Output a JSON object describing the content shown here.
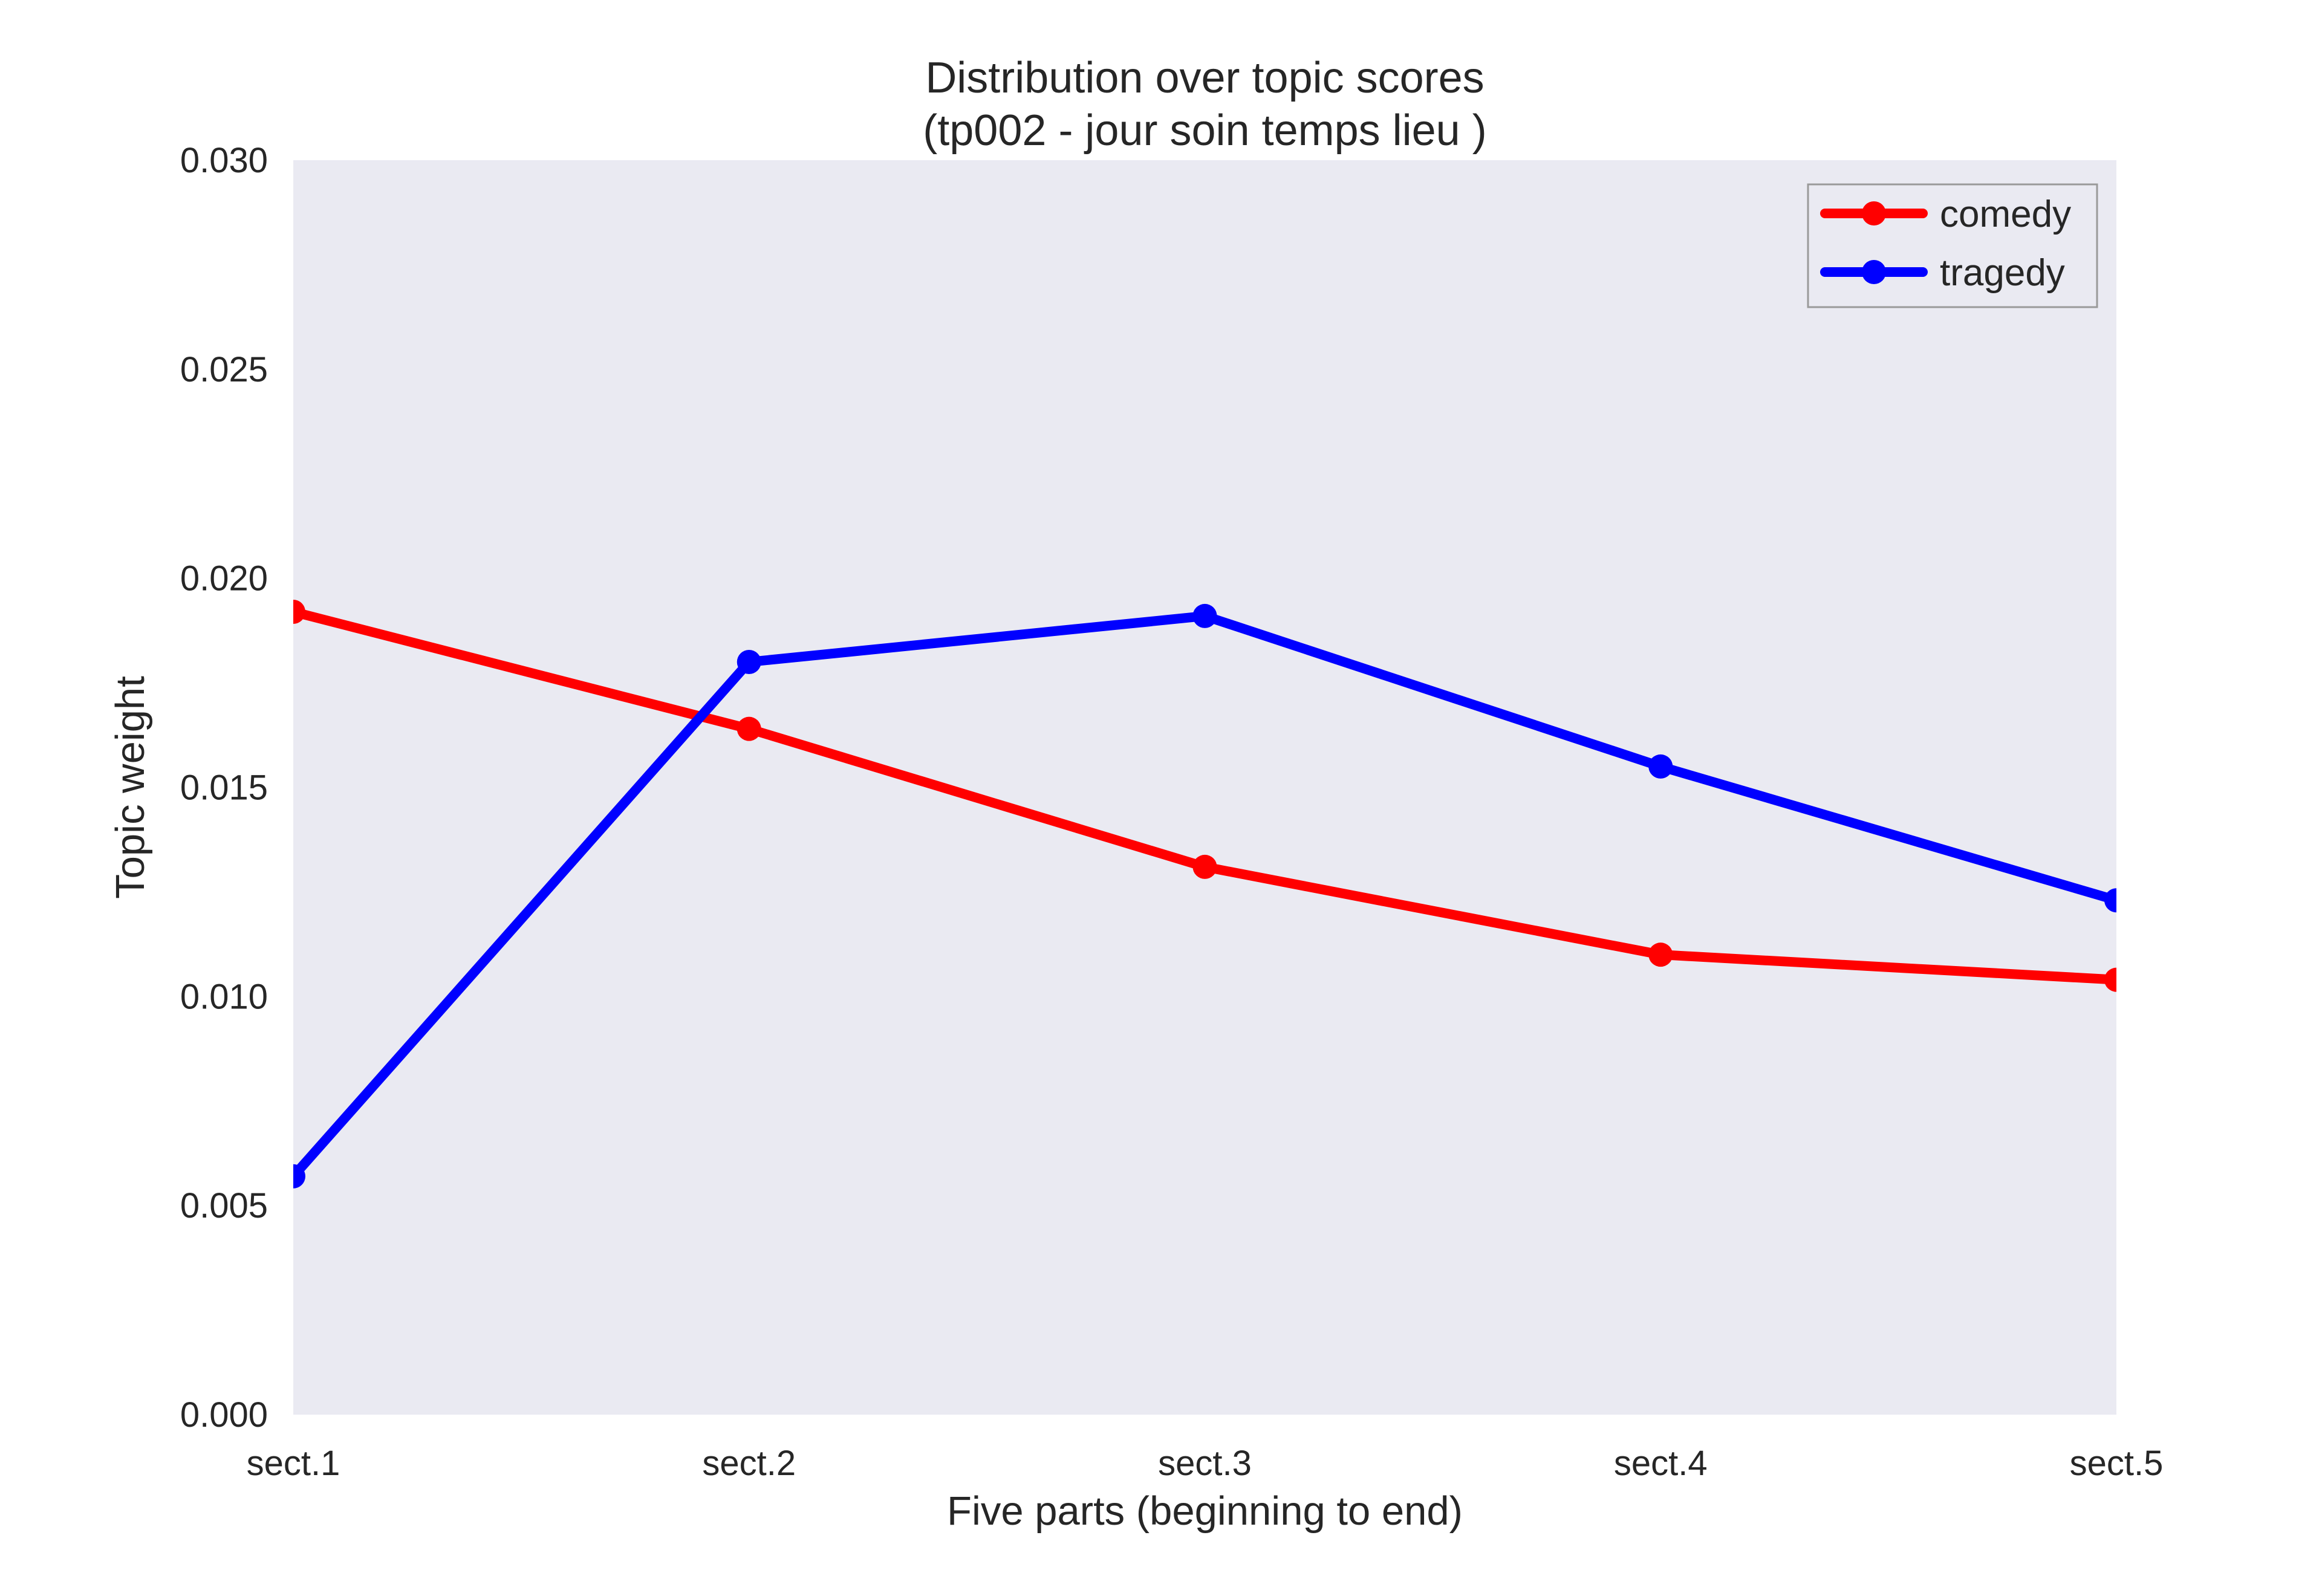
{
  "chart_data": {
    "type": "line",
    "title": "Distribution over topic scores",
    "subtitle": "(tp002 - jour soin temps lieu )",
    "xlabel": "Five parts (beginning to end)",
    "ylabel": "Topic weight",
    "categories": [
      "sect.1",
      "sect.2",
      "sect.3",
      "sect.4",
      "sect.5"
    ],
    "ylim": [
      0,
      0.03
    ],
    "yticks": [
      "0.000",
      "0.005",
      "0.010",
      "0.015",
      "0.020",
      "0.025",
      "0.030"
    ],
    "grid": false,
    "legend_position": "top-right",
    "background_color": "#eaeaf2",
    "series": [
      {
        "name": "comedy",
        "color": "#ff0000",
        "values": [
          0.0192,
          0.0164,
          0.0131,
          0.011,
          0.0104
        ]
      },
      {
        "name": "tragedy",
        "color": "#0000ff",
        "values": [
          0.0057,
          0.018,
          0.0191,
          0.0155,
          0.0123
        ]
      }
    ]
  }
}
